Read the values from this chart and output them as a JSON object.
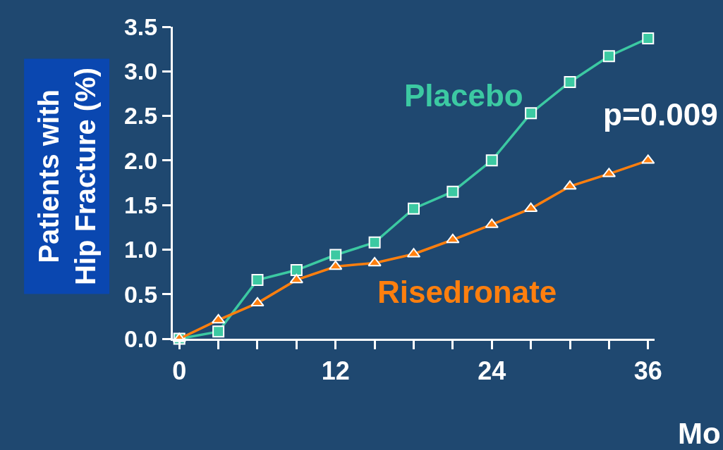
{
  "chart_data": {
    "type": "line",
    "ylabel": "Patients with\nHip Fracture (%)",
    "xlabel": "Mo",
    "x": [
      0,
      3,
      6,
      9,
      12,
      15,
      18,
      21,
      24,
      27,
      30,
      33,
      36
    ],
    "series": [
      {
        "name": "Placebo",
        "color": "#3cc9a2",
        "marker": "square",
        "values": [
          0,
          0.08,
          0.66,
          0.77,
          0.94,
          1.08,
          1.46,
          1.65,
          2.0,
          2.53,
          2.88,
          3.17,
          3.37
        ]
      },
      {
        "name": "Risedronate",
        "color": "#ff7f0e",
        "marker": "triangle",
        "values": [
          0,
          0.21,
          0.4,
          0.66,
          0.81,
          0.85,
          0.95,
          1.11,
          1.28,
          1.46,
          1.71,
          1.85,
          2.0
        ]
      }
    ],
    "annotations": [
      "p=0.009"
    ],
    "xlim": [
      -0.5,
      36.5
    ],
    "xticks": [
      0,
      {
        "value": 3,
        "label": null
      },
      {
        "value": 6,
        "label": null
      },
      {
        "value": 9,
        "label": null
      },
      12,
      {
        "value": 15,
        "label": null
      },
      {
        "value": 18,
        "label": null
      },
      {
        "value": 21,
        "label": null
      },
      24,
      {
        "value": 27,
        "label": null
      },
      {
        "value": 30,
        "label": null
      },
      {
        "value": 33,
        "label": null
      },
      36
    ],
    "ylim": [
      0,
      3.5
    ],
    "yticks": [
      {
        "value": 0,
        "label": "0.0"
      },
      {
        "value": 0.5,
        "label": "0.5"
      },
      {
        "value": 1,
        "label": "1.0"
      },
      {
        "value": 1.5,
        "label": "1.5"
      },
      {
        "value": 2,
        "label": "2.0"
      },
      {
        "value": 2.5,
        "label": "2.5"
      },
      {
        "value": 3,
        "label": "3.0"
      },
      {
        "value": 3.5,
        "label": "3.5"
      }
    ],
    "grid": false,
    "legend": false,
    "line_style": "solid"
  }
}
